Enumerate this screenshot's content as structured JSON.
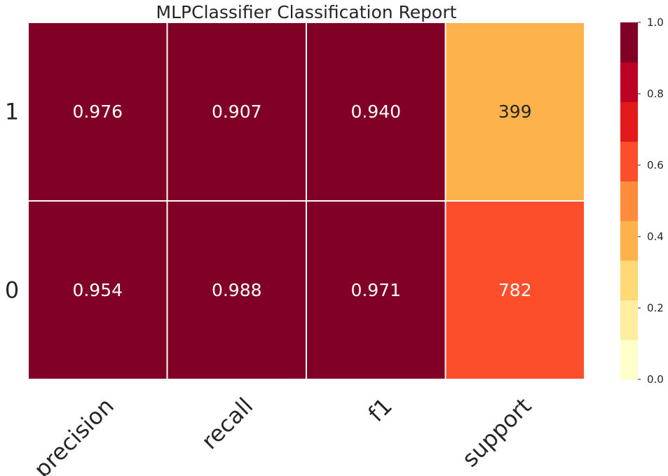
{
  "chart_data": {
    "type": "heatmap",
    "title": "MLPClassifier Classification Report",
    "rows": [
      "1",
      "0"
    ],
    "columns": [
      "precision",
      "recall",
      "f1",
      "support"
    ],
    "values": [
      [
        0.976,
        0.907,
        0.94,
        399
      ],
      [
        0.954,
        0.988,
        0.971,
        782
      ]
    ],
    "cell_labels": [
      [
        "0.976",
        "0.907",
        "0.940",
        "399"
      ],
      [
        "0.954",
        "0.988",
        "0.971",
        "782"
      ]
    ],
    "support_fraction": [
      0.338,
      0.662
    ],
    "colorbar": {
      "range": [
        0.0,
        1.0
      ],
      "ticks": [
        "0.0",
        "0.2",
        "0.4",
        "0.6",
        "0.8",
        "1.0"
      ],
      "bins": [
        "#ffffcc",
        "#ffeda0",
        "#fed976",
        "#feb24c",
        "#fd8d3c",
        "#fc4e2a",
        "#e31a1c",
        "#bd0026",
        "#800026"
      ]
    }
  }
}
